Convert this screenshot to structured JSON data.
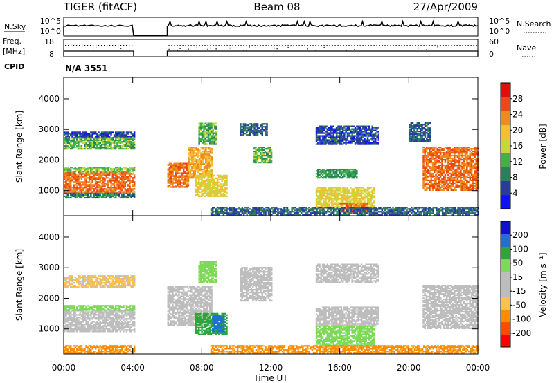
{
  "header": {
    "title": "TIGER (fitACF)",
    "beam": "Beam 08",
    "date": "27/Apr/2009"
  },
  "strips": {
    "nsky_label": "N.Sky",
    "nsky_ticks": [
      "10^5",
      "10^0"
    ],
    "nsearch_label": "N.Search",
    "nsearch_ticks": [
      "10^5",
      "10^0"
    ],
    "freq_label_1": "Freq.",
    "freq_label_2": "[MHz]",
    "freq_ticks": [
      "18",
      "8"
    ],
    "nave_label": "Nave",
    "nave_ticks": [
      "60",
      "0"
    ],
    "cpid_label": "CPID",
    "cpid_value": "N/A 3551"
  },
  "colors": {
    "power_scale": [
      "#1010ff",
      "#2a3aa0",
      "#2b7f5a",
      "#3fb04a",
      "#c8d63a",
      "#f2c032",
      "#ef8a1e",
      "#e84b14",
      "#e30d0d"
    ],
    "velocity_scale": [
      "#ff0000",
      "#ff4a00",
      "#ff8c00",
      "#ffc04d",
      "#bdbdbd",
      "#bdbdbd",
      "#7ed957",
      "#2aa63a",
      "#1f6fd6",
      "#1010c8"
    ]
  },
  "chart_data": [
    {
      "type": "heatmap",
      "name": "power",
      "xlabel": "Time UT",
      "ylabel": "Slant Range [km]",
      "x_ticks": [
        "00:00",
        "04:00",
        "08:00",
        "12:00",
        "16:00",
        "20:00",
        "00:00"
      ],
      "xlim": [
        0,
        24
      ],
      "y_ticks": [
        1000,
        2000,
        3000,
        4000
      ],
      "ylim": [
        180,
        4700
      ],
      "colorbar": {
        "label": "Power [dB]",
        "ticks": [
          28,
          24,
          20,
          16,
          12,
          8,
          4
        ],
        "range": [
          0,
          32
        ]
      },
      "data_gap_hours": [
        4.05,
        6.0
      ],
      "regions": [
        {
          "t0": 0.0,
          "t1": 4.05,
          "r0": 900,
          "r1": 1600,
          "level": 28
        },
        {
          "t0": 0.0,
          "t1": 4.05,
          "r0": 1600,
          "r1": 1750,
          "level": 16
        },
        {
          "t0": 0.0,
          "t1": 4.05,
          "r0": 750,
          "r1": 900,
          "level": 10
        },
        {
          "t0": 0.0,
          "t1": 4.05,
          "r0": 2350,
          "r1": 2750,
          "level": 14
        },
        {
          "t0": 0.0,
          "t1": 4.05,
          "r0": 2750,
          "r1": 2900,
          "level": 6
        },
        {
          "t0": 6.0,
          "t1": 7.2,
          "r0": 1100,
          "r1": 1900,
          "level": 28
        },
        {
          "t0": 7.2,
          "t1": 8.6,
          "r0": 1400,
          "r1": 2400,
          "level": 24
        },
        {
          "t0": 7.6,
          "t1": 9.4,
          "r0": 800,
          "r1": 1500,
          "level": 20
        },
        {
          "t0": 7.8,
          "t1": 8.8,
          "r0": 2500,
          "r1": 3200,
          "level": 14
        },
        {
          "t0": 10.2,
          "t1": 11.8,
          "r0": 2800,
          "r1": 3200,
          "level": 8
        },
        {
          "t0": 11.0,
          "t1": 12.0,
          "r0": 1900,
          "r1": 2400,
          "level": 14
        },
        {
          "t0": 14.6,
          "t1": 18.0,
          "r0": 400,
          "r1": 1100,
          "level": 20
        },
        {
          "t0": 16.0,
          "t1": 17.6,
          "r0": 250,
          "r1": 600,
          "level": 28
        },
        {
          "t0": 14.6,
          "t1": 17.0,
          "r0": 1400,
          "r1": 1700,
          "level": 12
        },
        {
          "t0": 14.6,
          "t1": 18.2,
          "r0": 2500,
          "r1": 3100,
          "level": 6
        },
        {
          "t0": 20.8,
          "t1": 24.0,
          "r0": 1000,
          "r1": 2400,
          "level": 28
        },
        {
          "t0": 20.0,
          "t1": 21.2,
          "r0": 2600,
          "r1": 3200,
          "level": 8
        },
        {
          "t0": 8.5,
          "t1": 24.0,
          "r0": 200,
          "r1": 450,
          "level": 8
        }
      ]
    },
    {
      "type": "heatmap",
      "name": "velocity",
      "xlabel": "Time UT",
      "ylabel": "Slant Range [km]",
      "x_ticks": [
        "00:00",
        "04:00",
        "08:00",
        "12:00",
        "16:00",
        "20:00",
        "00:00"
      ],
      "xlim": [
        0,
        24
      ],
      "y_ticks": [
        1000,
        2000,
        3000,
        4000
      ],
      "ylim": [
        180,
        4700
      ],
      "colorbar": {
        "label": "Velocity [m s⁻¹]",
        "ticks": [
          "200",
          "100",
          "50",
          "15",
          "-15",
          "-50",
          "-100",
          "-200"
        ],
        "range": [
          -250,
          250
        ]
      },
      "data_gap_hours": [
        4.05,
        6.0
      ],
      "regions": [
        {
          "t0": 0.0,
          "t1": 4.05,
          "r0": 900,
          "r1": 1600,
          "level": 0
        },
        {
          "t0": 0.0,
          "t1": 4.05,
          "r0": 1600,
          "r1": 1750,
          "level": 30
        },
        {
          "t0": 0.0,
          "t1": 4.05,
          "r0": 2350,
          "r1": 2750,
          "level": -20
        },
        {
          "t0": 0.0,
          "t1": 4.05,
          "r0": 200,
          "r1": 450,
          "level": -60
        },
        {
          "t0": 6.0,
          "t1": 8.6,
          "r0": 1100,
          "r1": 2400,
          "level": 0
        },
        {
          "t0": 7.6,
          "t1": 9.4,
          "r0": 800,
          "r1": 1500,
          "level": 70
        },
        {
          "t0": 8.6,
          "t1": 9.3,
          "r0": 900,
          "r1": 1400,
          "level": 180
        },
        {
          "t0": 7.8,
          "t1": 8.8,
          "r0": 2500,
          "r1": 3200,
          "level": 30
        },
        {
          "t0": 10.2,
          "t1": 12.0,
          "r0": 1900,
          "r1": 3000,
          "level": 0
        },
        {
          "t0": 14.6,
          "t1": 18.0,
          "r0": 400,
          "r1": 1100,
          "level": 30
        },
        {
          "t0": 14.6,
          "t1": 18.2,
          "r0": 1100,
          "r1": 1700,
          "level": 0
        },
        {
          "t0": 14.6,
          "t1": 18.2,
          "r0": 2500,
          "r1": 3100,
          "level": 0
        },
        {
          "t0": 20.8,
          "t1": 24.0,
          "r0": 1000,
          "r1": 2400,
          "level": 0
        },
        {
          "t0": 8.5,
          "t1": 24.0,
          "r0": 200,
          "r1": 450,
          "level": -60
        }
      ]
    }
  ]
}
